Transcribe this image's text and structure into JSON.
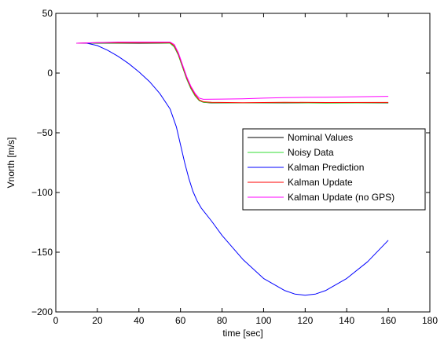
{
  "chart_data": {
    "type": "line",
    "title": "",
    "xlabel": "time [sec]",
    "ylabel": "Vnorth [m/s]",
    "xlim": [
      0,
      180
    ],
    "ylim": [
      -200,
      50
    ],
    "xticks": [
      0,
      20,
      40,
      60,
      80,
      100,
      120,
      140,
      160,
      180
    ],
    "yticks": [
      -200,
      -150,
      -100,
      -50,
      0,
      50
    ],
    "grid": false,
    "legend_position": "right",
    "series": [
      {
        "name": "Nominal Values",
        "color": "#000000",
        "points": [
          [
            10,
            25
          ],
          [
            20,
            25
          ],
          [
            30,
            25
          ],
          [
            40,
            25
          ],
          [
            50,
            25
          ],
          [
            55,
            25
          ],
          [
            57,
            22
          ],
          [
            59,
            15
          ],
          [
            61,
            5
          ],
          [
            63,
            -5
          ],
          [
            65,
            -13
          ],
          [
            67,
            -19
          ],
          [
            69,
            -23
          ],
          [
            71,
            -24.5
          ],
          [
            75,
            -25
          ],
          [
            90,
            -25
          ],
          [
            110,
            -25
          ],
          [
            130,
            -25
          ],
          [
            160,
            -25
          ]
        ]
      },
      {
        "name": "Noisy Data",
        "color": "#33dd33",
        "points": [
          [
            10,
            25
          ],
          [
            20,
            25.2
          ],
          [
            30,
            25.1
          ],
          [
            40,
            25.3
          ],
          [
            50,
            25.2
          ],
          [
            55,
            25
          ],
          [
            57,
            22
          ],
          [
            59,
            15
          ],
          [
            61,
            5
          ],
          [
            63,
            -5
          ],
          [
            65,
            -13
          ],
          [
            67,
            -19
          ],
          [
            69,
            -23
          ],
          [
            71,
            -24.5
          ],
          [
            75,
            -24.8
          ],
          [
            90,
            -25
          ],
          [
            110,
            -24.8
          ],
          [
            130,
            -25.1
          ],
          [
            160,
            -24.9
          ]
        ]
      },
      {
        "name": "Kalman Prediction",
        "color": "#0000ff",
        "points": [
          [
            10,
            25
          ],
          [
            15,
            25
          ],
          [
            20,
            23
          ],
          [
            25,
            19
          ],
          [
            30,
            14
          ],
          [
            35,
            8
          ],
          [
            40,
            1
          ],
          [
            45,
            -7
          ],
          [
            50,
            -17
          ],
          [
            55,
            -30
          ],
          [
            58,
            -45
          ],
          [
            60,
            -60
          ],
          [
            62,
            -75
          ],
          [
            64,
            -88
          ],
          [
            66,
            -99
          ],
          [
            68,
            -107
          ],
          [
            70,
            -113
          ],
          [
            75,
            -124
          ],
          [
            80,
            -136
          ],
          [
            90,
            -156
          ],
          [
            100,
            -172
          ],
          [
            110,
            -182
          ],
          [
            115,
            -185
          ],
          [
            120,
            -186
          ],
          [
            125,
            -185
          ],
          [
            130,
            -182
          ],
          [
            140,
            -172
          ],
          [
            150,
            -158
          ],
          [
            160,
            -140
          ]
        ]
      },
      {
        "name": "Kalman Update",
        "color": "#ff0000",
        "points": [
          [
            10,
            25
          ],
          [
            20,
            25.5
          ],
          [
            30,
            25.5
          ],
          [
            40,
            25.5
          ],
          [
            50,
            25.5
          ],
          [
            55,
            25.5
          ],
          [
            57,
            23
          ],
          [
            59,
            16
          ],
          [
            61,
            6
          ],
          [
            63,
            -4
          ],
          [
            65,
            -12
          ],
          [
            67,
            -18
          ],
          [
            69,
            -22.5
          ],
          [
            71,
            -24
          ],
          [
            75,
            -24.5
          ],
          [
            90,
            -24.8
          ],
          [
            110,
            -24.5
          ],
          [
            130,
            -24.7
          ],
          [
            160,
            -24.6
          ]
        ]
      },
      {
        "name": "Kalman Update (no GPS)",
        "color": "#ff00ff",
        "points": [
          [
            10,
            25
          ],
          [
            20,
            25.5
          ],
          [
            30,
            26
          ],
          [
            40,
            26
          ],
          [
            50,
            26
          ],
          [
            55,
            26
          ],
          [
            57,
            24
          ],
          [
            59,
            17
          ],
          [
            61,
            7
          ],
          [
            63,
            -3
          ],
          [
            65,
            -11
          ],
          [
            67,
            -17
          ],
          [
            69,
            -21
          ],
          [
            71,
            -22
          ],
          [
            80,
            -21.8
          ],
          [
            90,
            -21.5
          ],
          [
            100,
            -21
          ],
          [
            110,
            -20.5
          ],
          [
            120,
            -20.3
          ],
          [
            130,
            -20.2
          ],
          [
            140,
            -20
          ],
          [
            160,
            -19.5
          ]
        ]
      }
    ]
  }
}
